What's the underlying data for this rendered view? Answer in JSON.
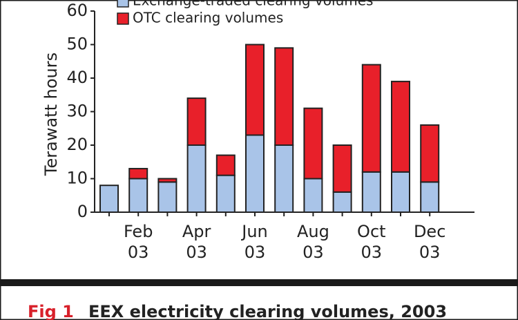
{
  "chart_data": {
    "type": "stacked-bar",
    "y_label": "Terawatt hours",
    "caption_label": "Fig 1",
    "caption": "EEX electricity clearing volumes, 2003",
    "categories": [
      null,
      "Feb\n03",
      null,
      "Apr\n03",
      null,
      "Jun\n03",
      null,
      "Aug\n03",
      null,
      "Oct\n03",
      null,
      "Dec\n03"
    ],
    "series": [
      {
        "name": "Exchange-traded clearing volumes",
        "color": "#a9c4e8",
        "values": [
          8,
          10,
          9,
          20,
          11,
          23,
          20,
          10,
          6,
          12,
          12,
          9
        ]
      },
      {
        "name": "OTC clearing volumes",
        "color": "#e8202a",
        "values": [
          0,
          3,
          1,
          14,
          6,
          27,
          29,
          21,
          14,
          32,
          27,
          17
        ]
      }
    ],
    "ylim": [
      0,
      60
    ],
    "yticks": [
      0,
      10,
      20,
      30,
      40,
      50,
      60
    ],
    "legend": "top"
  }
}
